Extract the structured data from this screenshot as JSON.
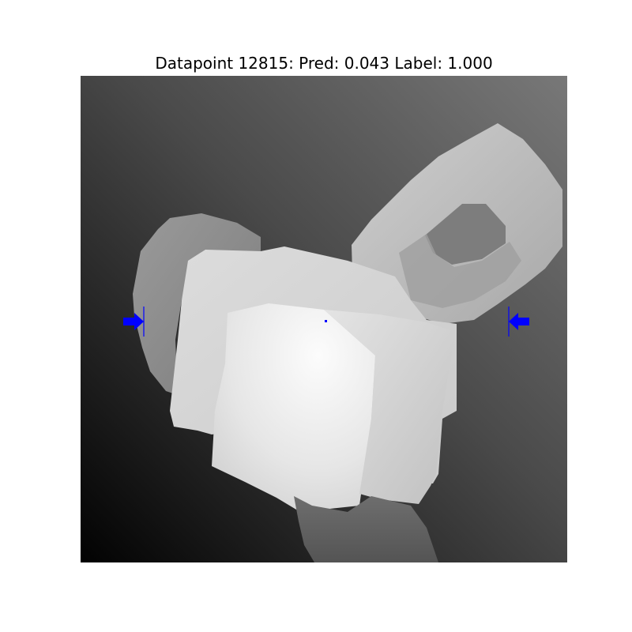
{
  "figure": {
    "title": "Datapoint 12815: Pred: 0.043 Label: 1.000"
  },
  "colors": {
    "marker": "#0000ff",
    "background_top": "#727272",
    "background_bottom": "#020202",
    "object_light": "#f8f8f8",
    "object_mid": "#c4c4c4",
    "object_dark": "#8a8a8a",
    "handle": "#b8b8b8"
  }
}
